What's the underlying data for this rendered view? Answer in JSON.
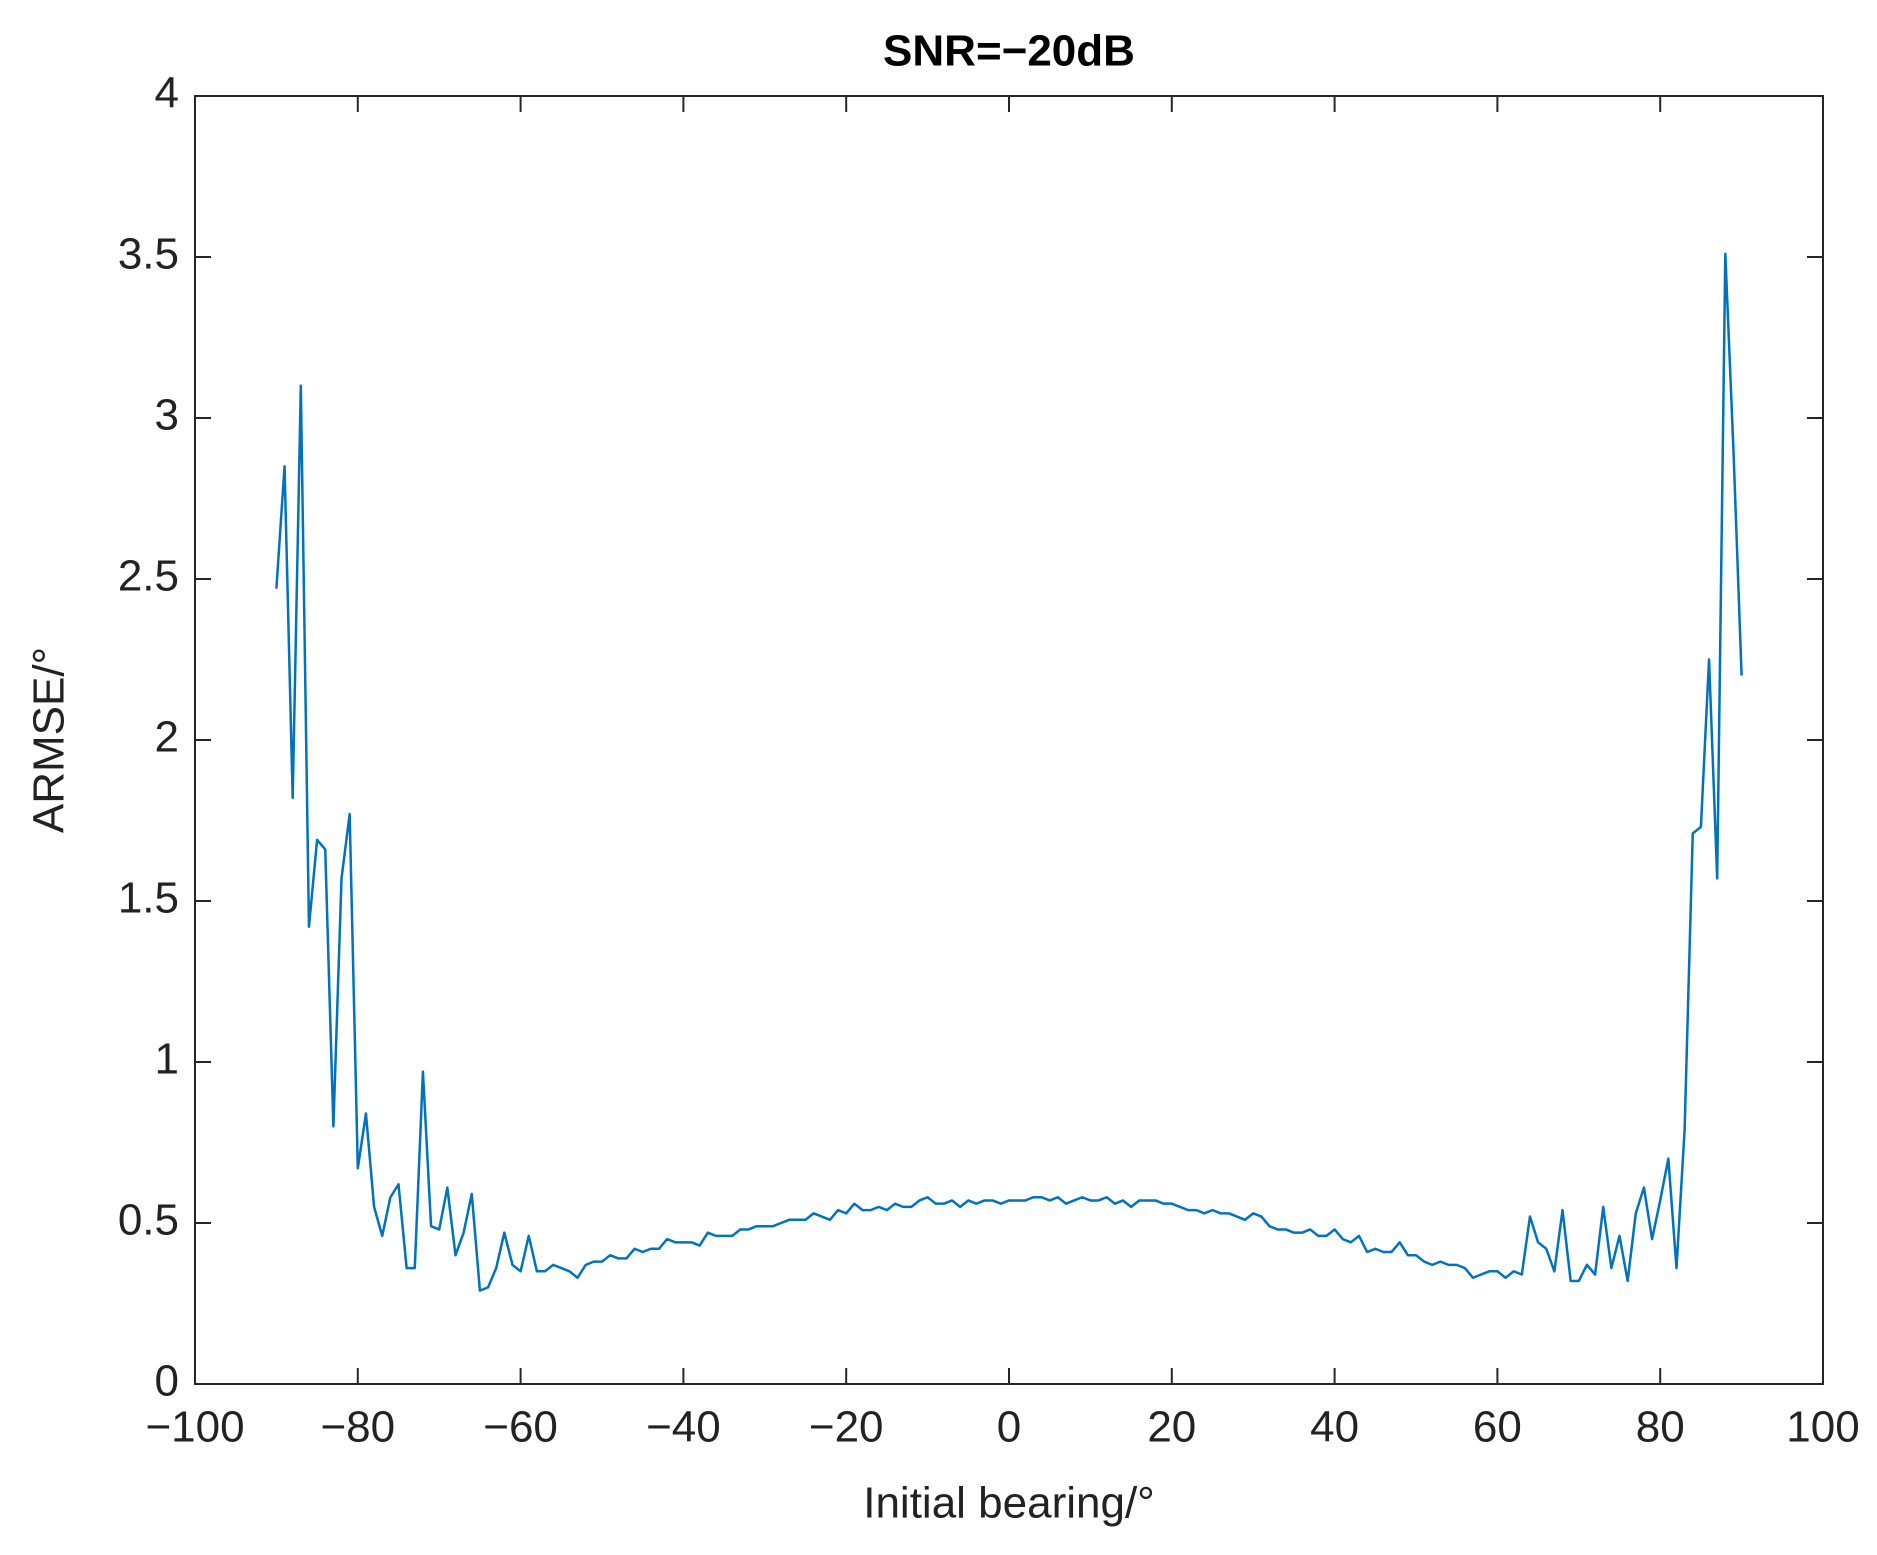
{
  "chart_data": {
    "type": "line",
    "title": "SNR=−20dB",
    "xlabel": "Initial bearing/°",
    "ylabel": "ARMSE/°",
    "x": [
      -90,
      -89,
      -88,
      -87,
      -86,
      -85,
      -84,
      -83,
      -82,
      -81,
      -80,
      -79,
      -78,
      -77,
      -76,
      -75,
      -74,
      -73,
      -72,
      -71,
      -70,
      -69,
      -68,
      -67,
      -66,
      -65,
      -64,
      -63,
      -62,
      -61,
      -60,
      -59,
      -58,
      -57,
      -56,
      -55,
      -54,
      -53,
      -52,
      -51,
      -50,
      -49,
      -48,
      -47,
      -46,
      -45,
      -44,
      -43,
      -42,
      -41,
      -40,
      -39,
      -38,
      -37,
      -36,
      -35,
      -34,
      -33,
      -32,
      -31,
      -30,
      -29,
      -28,
      -27,
      -26,
      -25,
      -24,
      -23,
      -22,
      -21,
      -20,
      -19,
      -18,
      -17,
      -16,
      -15,
      -14,
      -13,
      -12,
      -11,
      -10,
      -9,
      -8,
      -7,
      -6,
      -5,
      -4,
      -3,
      -2,
      -1,
      0,
      1,
      2,
      3,
      4,
      5,
      6,
      7,
      8,
      9,
      10,
      11,
      12,
      13,
      14,
      15,
      16,
      17,
      18,
      19,
      20,
      21,
      22,
      23,
      24,
      25,
      26,
      27,
      28,
      29,
      30,
      31,
      32,
      33,
      34,
      35,
      36,
      37,
      38,
      39,
      40,
      41,
      42,
      43,
      44,
      45,
      46,
      47,
      48,
      49,
      50,
      51,
      52,
      53,
      54,
      55,
      56,
      57,
      58,
      59,
      60,
      61,
      62,
      63,
      64,
      65,
      66,
      67,
      68,
      69,
      70,
      71,
      72,
      73,
      74,
      75,
      76,
      77,
      78,
      79,
      80,
      81,
      82,
      83,
      84,
      85,
      86,
      87,
      88,
      89,
      90
    ],
    "series": [
      {
        "color": "#0072bd",
        "values": [
          2.47,
          2.85,
          1.82,
          3.1,
          1.42,
          1.69,
          1.66,
          0.8,
          1.57,
          1.77,
          0.67,
          0.84,
          0.55,
          0.46,
          0.58,
          0.62,
          0.36,
          0.36,
          0.97,
          0.49,
          0.48,
          0.61,
          0.4,
          0.47,
          0.59,
          0.29,
          0.3,
          0.36,
          0.47,
          0.37,
          0.35,
          0.46,
          0.35,
          0.35,
          0.37,
          0.36,
          0.35,
          0.33,
          0.37,
          0.38,
          0.38,
          0.4,
          0.39,
          0.39,
          0.42,
          0.41,
          0.42,
          0.42,
          0.45,
          0.44,
          0.44,
          0.44,
          0.43,
          0.47,
          0.46,
          0.46,
          0.46,
          0.48,
          0.48,
          0.49,
          0.49,
          0.49,
          0.5,
          0.51,
          0.51,
          0.51,
          0.53,
          0.52,
          0.51,
          0.54,
          0.53,
          0.56,
          0.54,
          0.54,
          0.55,
          0.54,
          0.56,
          0.55,
          0.55,
          0.57,
          0.58,
          0.56,
          0.56,
          0.57,
          0.55,
          0.57,
          0.56,
          0.57,
          0.57,
          0.56,
          0.57,
          0.57,
          0.57,
          0.58,
          0.58,
          0.57,
          0.58,
          0.56,
          0.57,
          0.58,
          0.57,
          0.57,
          0.58,
          0.56,
          0.57,
          0.55,
          0.57,
          0.57,
          0.57,
          0.56,
          0.56,
          0.55,
          0.54,
          0.54,
          0.53,
          0.54,
          0.53,
          0.53,
          0.52,
          0.51,
          0.53,
          0.52,
          0.49,
          0.48,
          0.48,
          0.47,
          0.47,
          0.48,
          0.46,
          0.46,
          0.48,
          0.45,
          0.44,
          0.46,
          0.41,
          0.42,
          0.41,
          0.41,
          0.44,
          0.4,
          0.4,
          0.38,
          0.37,
          0.38,
          0.37,
          0.37,
          0.36,
          0.33,
          0.34,
          0.35,
          0.35,
          0.33,
          0.35,
          0.34,
          0.52,
          0.44,
          0.42,
          0.35,
          0.54,
          0.32,
          0.32,
          0.37,
          0.34,
          0.55,
          0.36,
          0.46,
          0.32,
          0.53,
          0.61,
          0.45,
          0.57,
          0.7,
          0.36,
          0.79,
          1.71,
          1.73,
          2.25,
          1.57,
          3.51,
          2.9,
          2.2
        ]
      }
    ],
    "xlim": [
      -100,
      100
    ],
    "xticks": [
      {
        "value": -100,
        "label": "−100"
      },
      {
        "value": -80,
        "label": "−80"
      },
      {
        "value": -60,
        "label": "−60"
      },
      {
        "value": -40,
        "label": "−40"
      },
      {
        "value": -20,
        "label": "−20"
      },
      0,
      20,
      40,
      60,
      80,
      100
    ],
    "ylim": [
      0,
      4
    ],
    "yticks": [
      0,
      0.5,
      1,
      1.5,
      2,
      2.5,
      3,
      3.5,
      4
    ],
    "grid": false
  }
}
